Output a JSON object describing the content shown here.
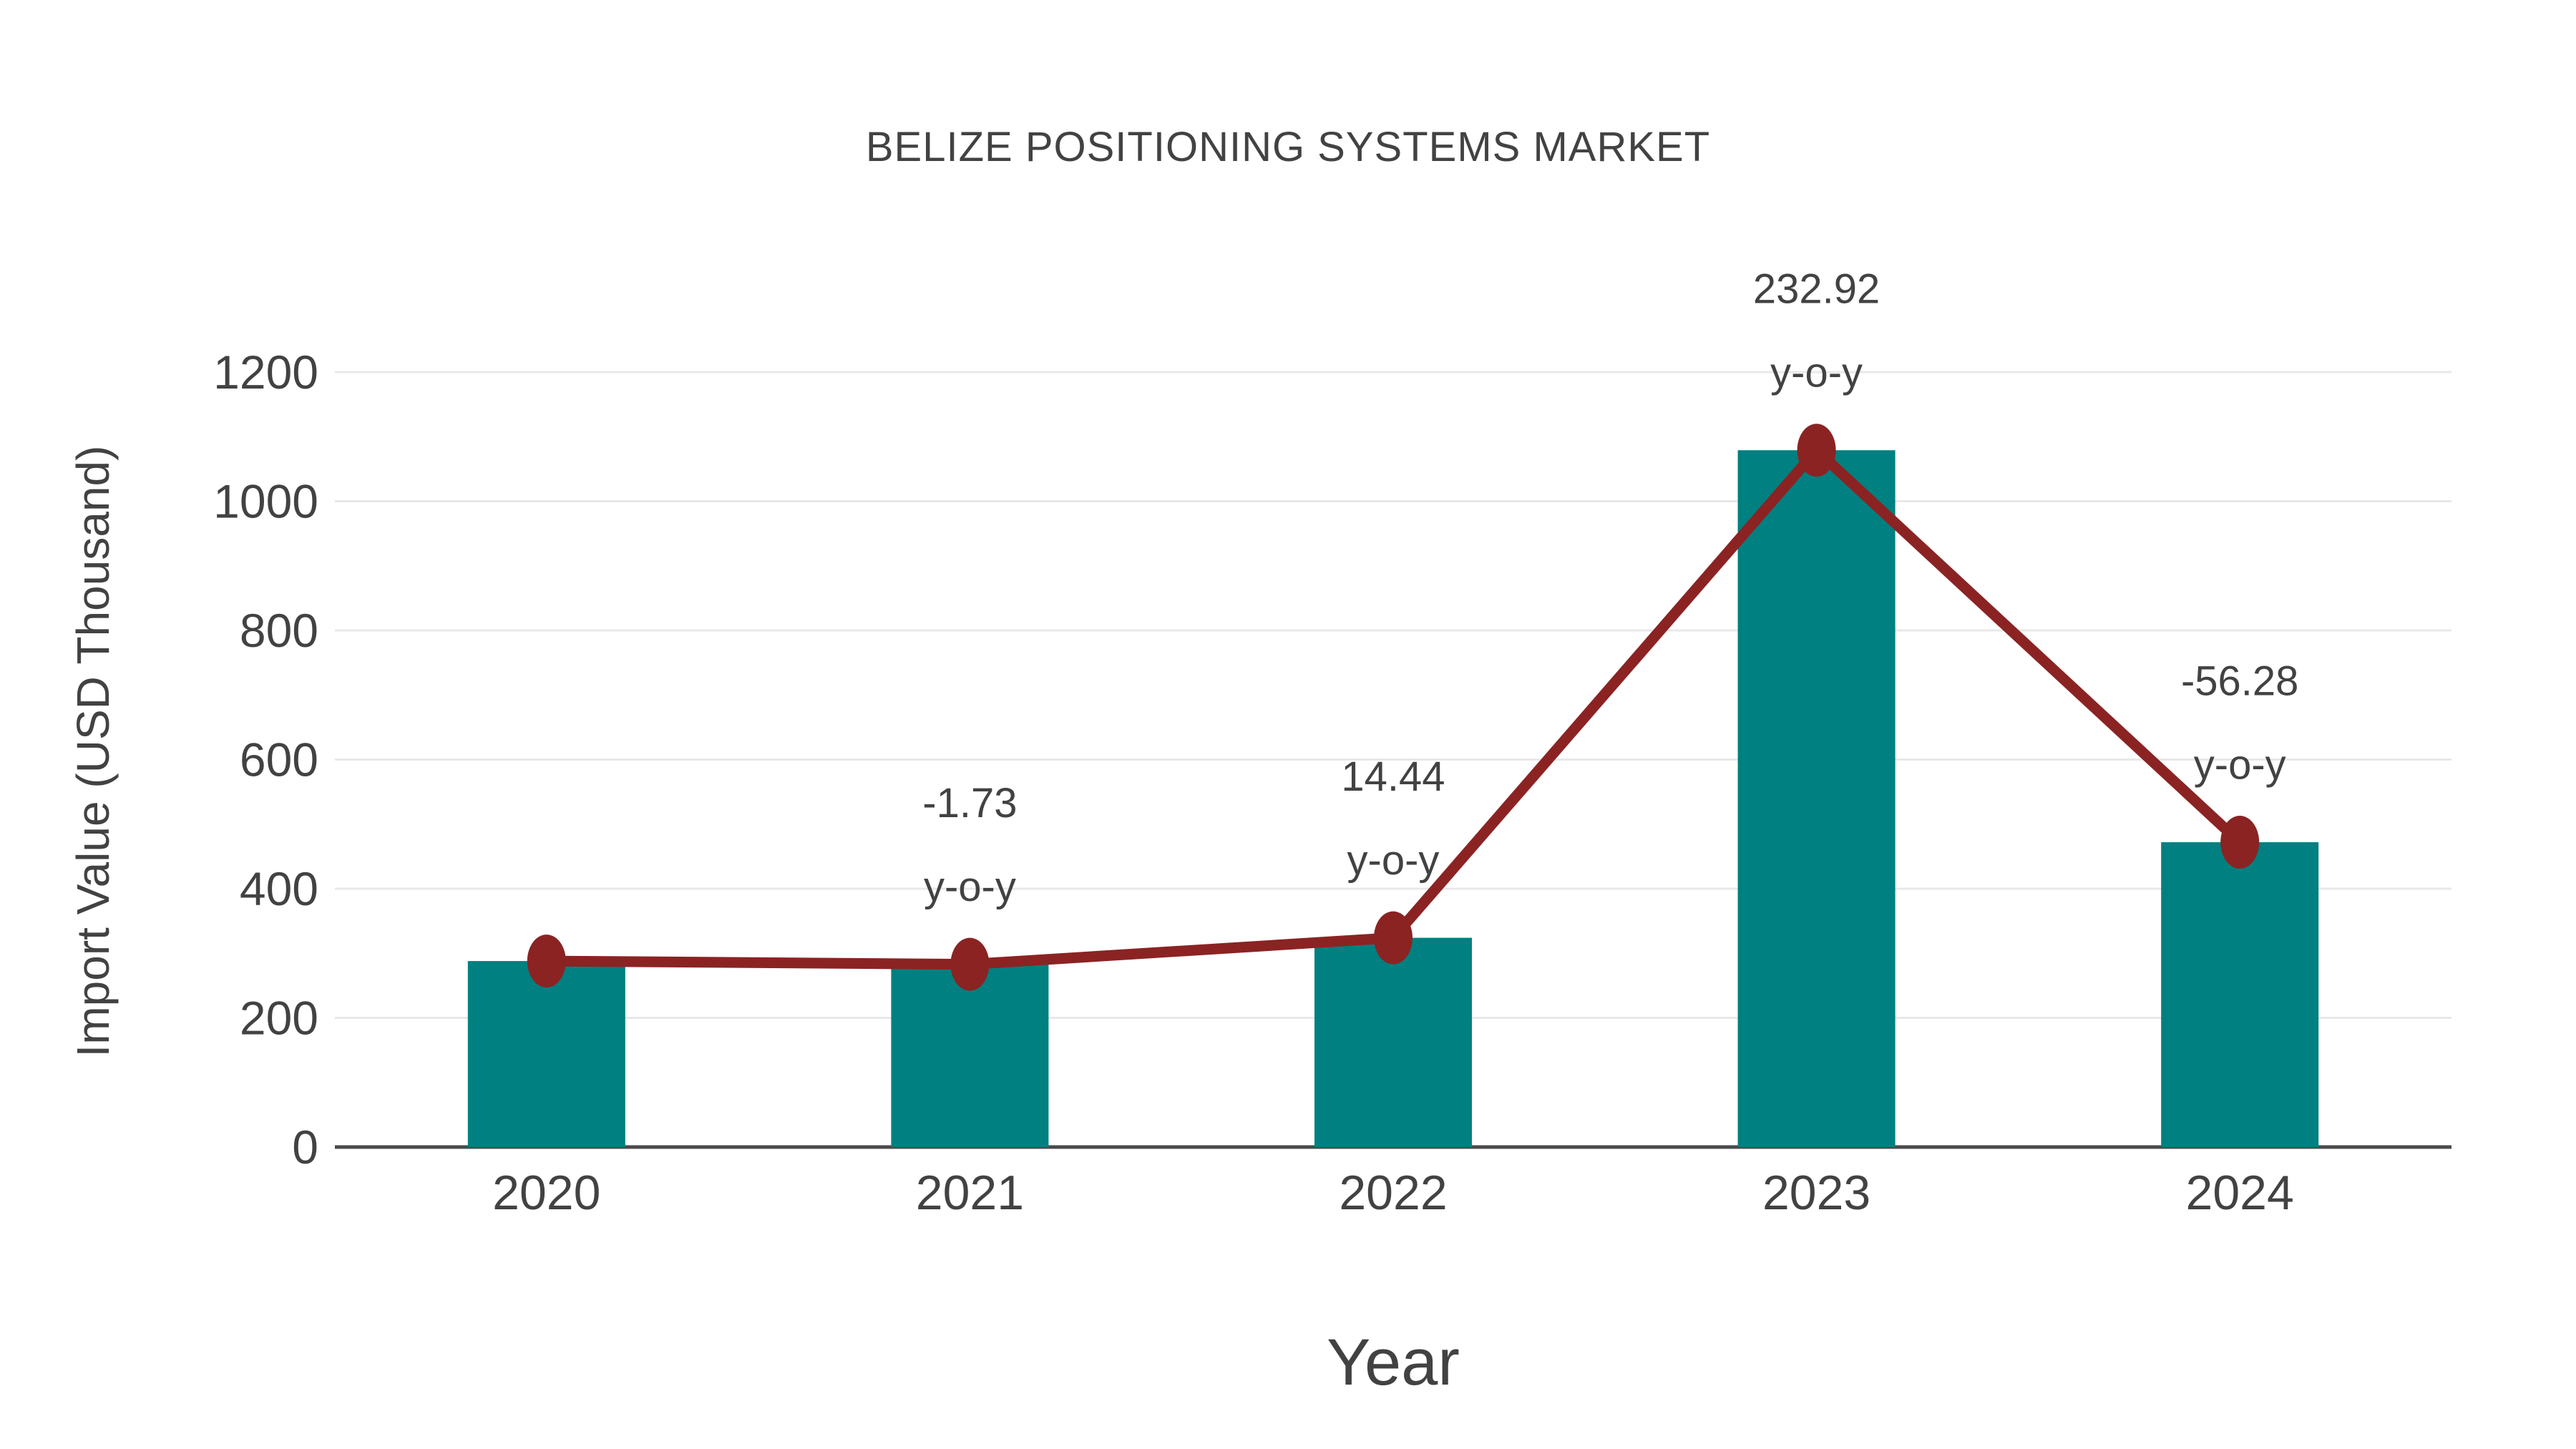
{
  "figure": {
    "background": "#ffffff"
  },
  "chart_data": {
    "type": "bar",
    "title": "BELIZE POSITIONING SYSTEMS MARKET",
    "xlabel": "Year",
    "ylabel": "Import Value (USD Thousand)",
    "categories": [
      "2020",
      "2021",
      "2022",
      "2023",
      "2024"
    ],
    "series": [
      {
        "name": "Import Value",
        "type": "bar",
        "color": "#008080",
        "values": [
          288,
          283,
          324,
          1079,
          472
        ]
      },
      {
        "name": "Import Value trend",
        "type": "line",
        "color": "#8B2323",
        "values": [
          288,
          283,
          324,
          1079,
          472
        ]
      }
    ],
    "annotations": [
      {
        "category": "2021",
        "line1": "-1.73",
        "line2": "y-o-y"
      },
      {
        "category": "2022",
        "line1": "14.44",
        "line2": "y-o-y"
      },
      {
        "category": "2023",
        "line1": "232.92",
        "line2": "y-o-y"
      },
      {
        "category": "2024",
        "line1": "-56.28",
        "line2": "y-o-y"
      }
    ],
    "ylim": [
      0,
      1200
    ],
    "yticks": [
      0,
      200,
      400,
      600,
      800,
      1000,
      1200
    ],
    "grid": true,
    "legend": "none",
    "colors": {
      "bar": "#008080",
      "line": "#8B2323",
      "text": "#424242",
      "grid": "#e8e8e8",
      "axis": "#4a4a4a"
    }
  }
}
